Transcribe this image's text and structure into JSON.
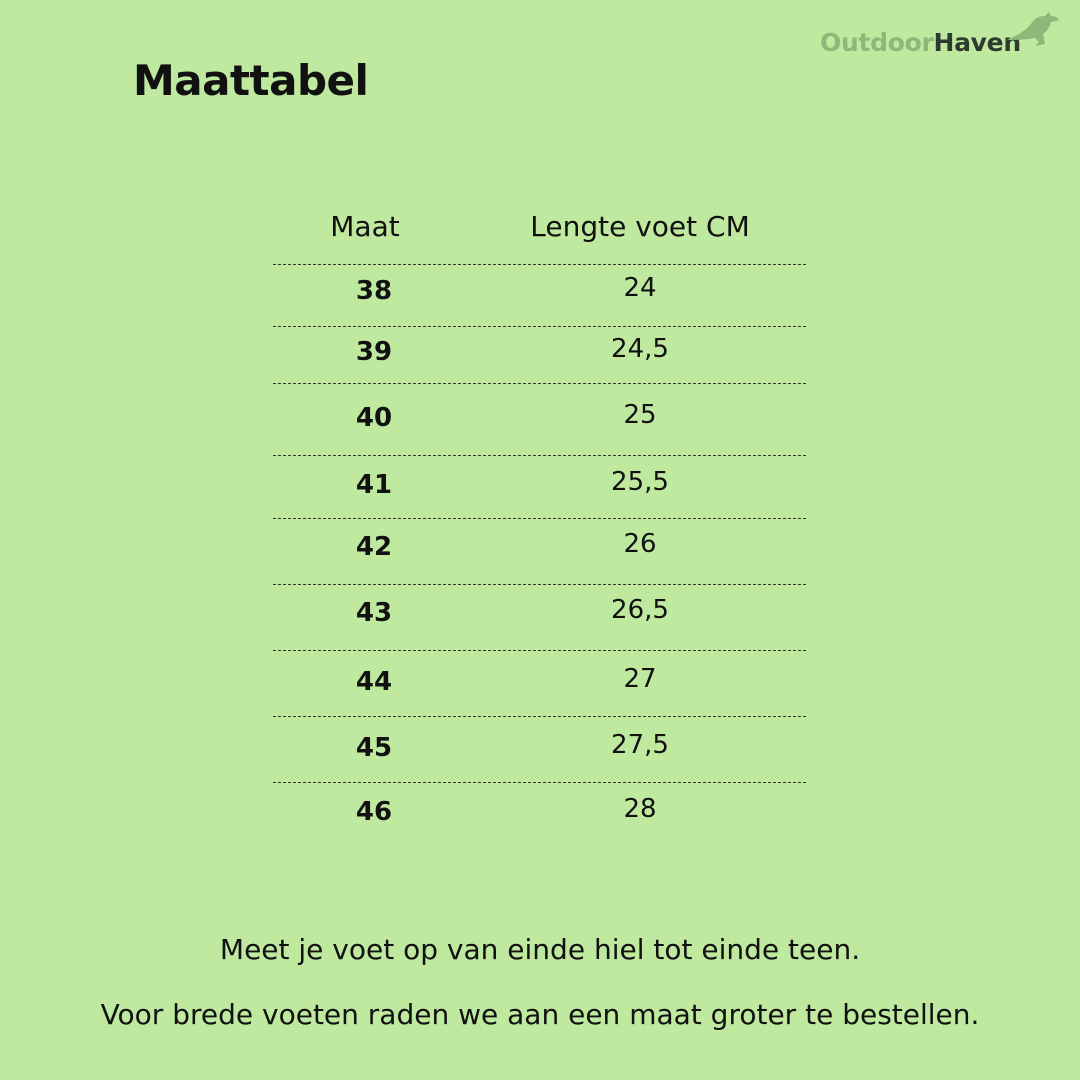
{
  "title": "Maattabel",
  "logo": {
    "part1": "Outdoor",
    "part2": "Haven",
    "icon": "kangaroo-icon"
  },
  "table": {
    "headers": [
      "Maat",
      "Lengte voet CM"
    ],
    "rows": [
      [
        "38",
        "24"
      ],
      [
        "39",
        "24,5"
      ],
      [
        "40",
        "25"
      ],
      [
        "41",
        "25,5"
      ],
      [
        "42",
        "26"
      ],
      [
        "43",
        "26,5"
      ],
      [
        "44",
        "27"
      ],
      [
        "45",
        "27,5"
      ],
      [
        "46",
        "28"
      ]
    ]
  },
  "notes": [
    "Meet je voet op van einde hiel tot einde teen.",
    "Voor brede voeten raden we aan een maat groter te bestellen."
  ]
}
